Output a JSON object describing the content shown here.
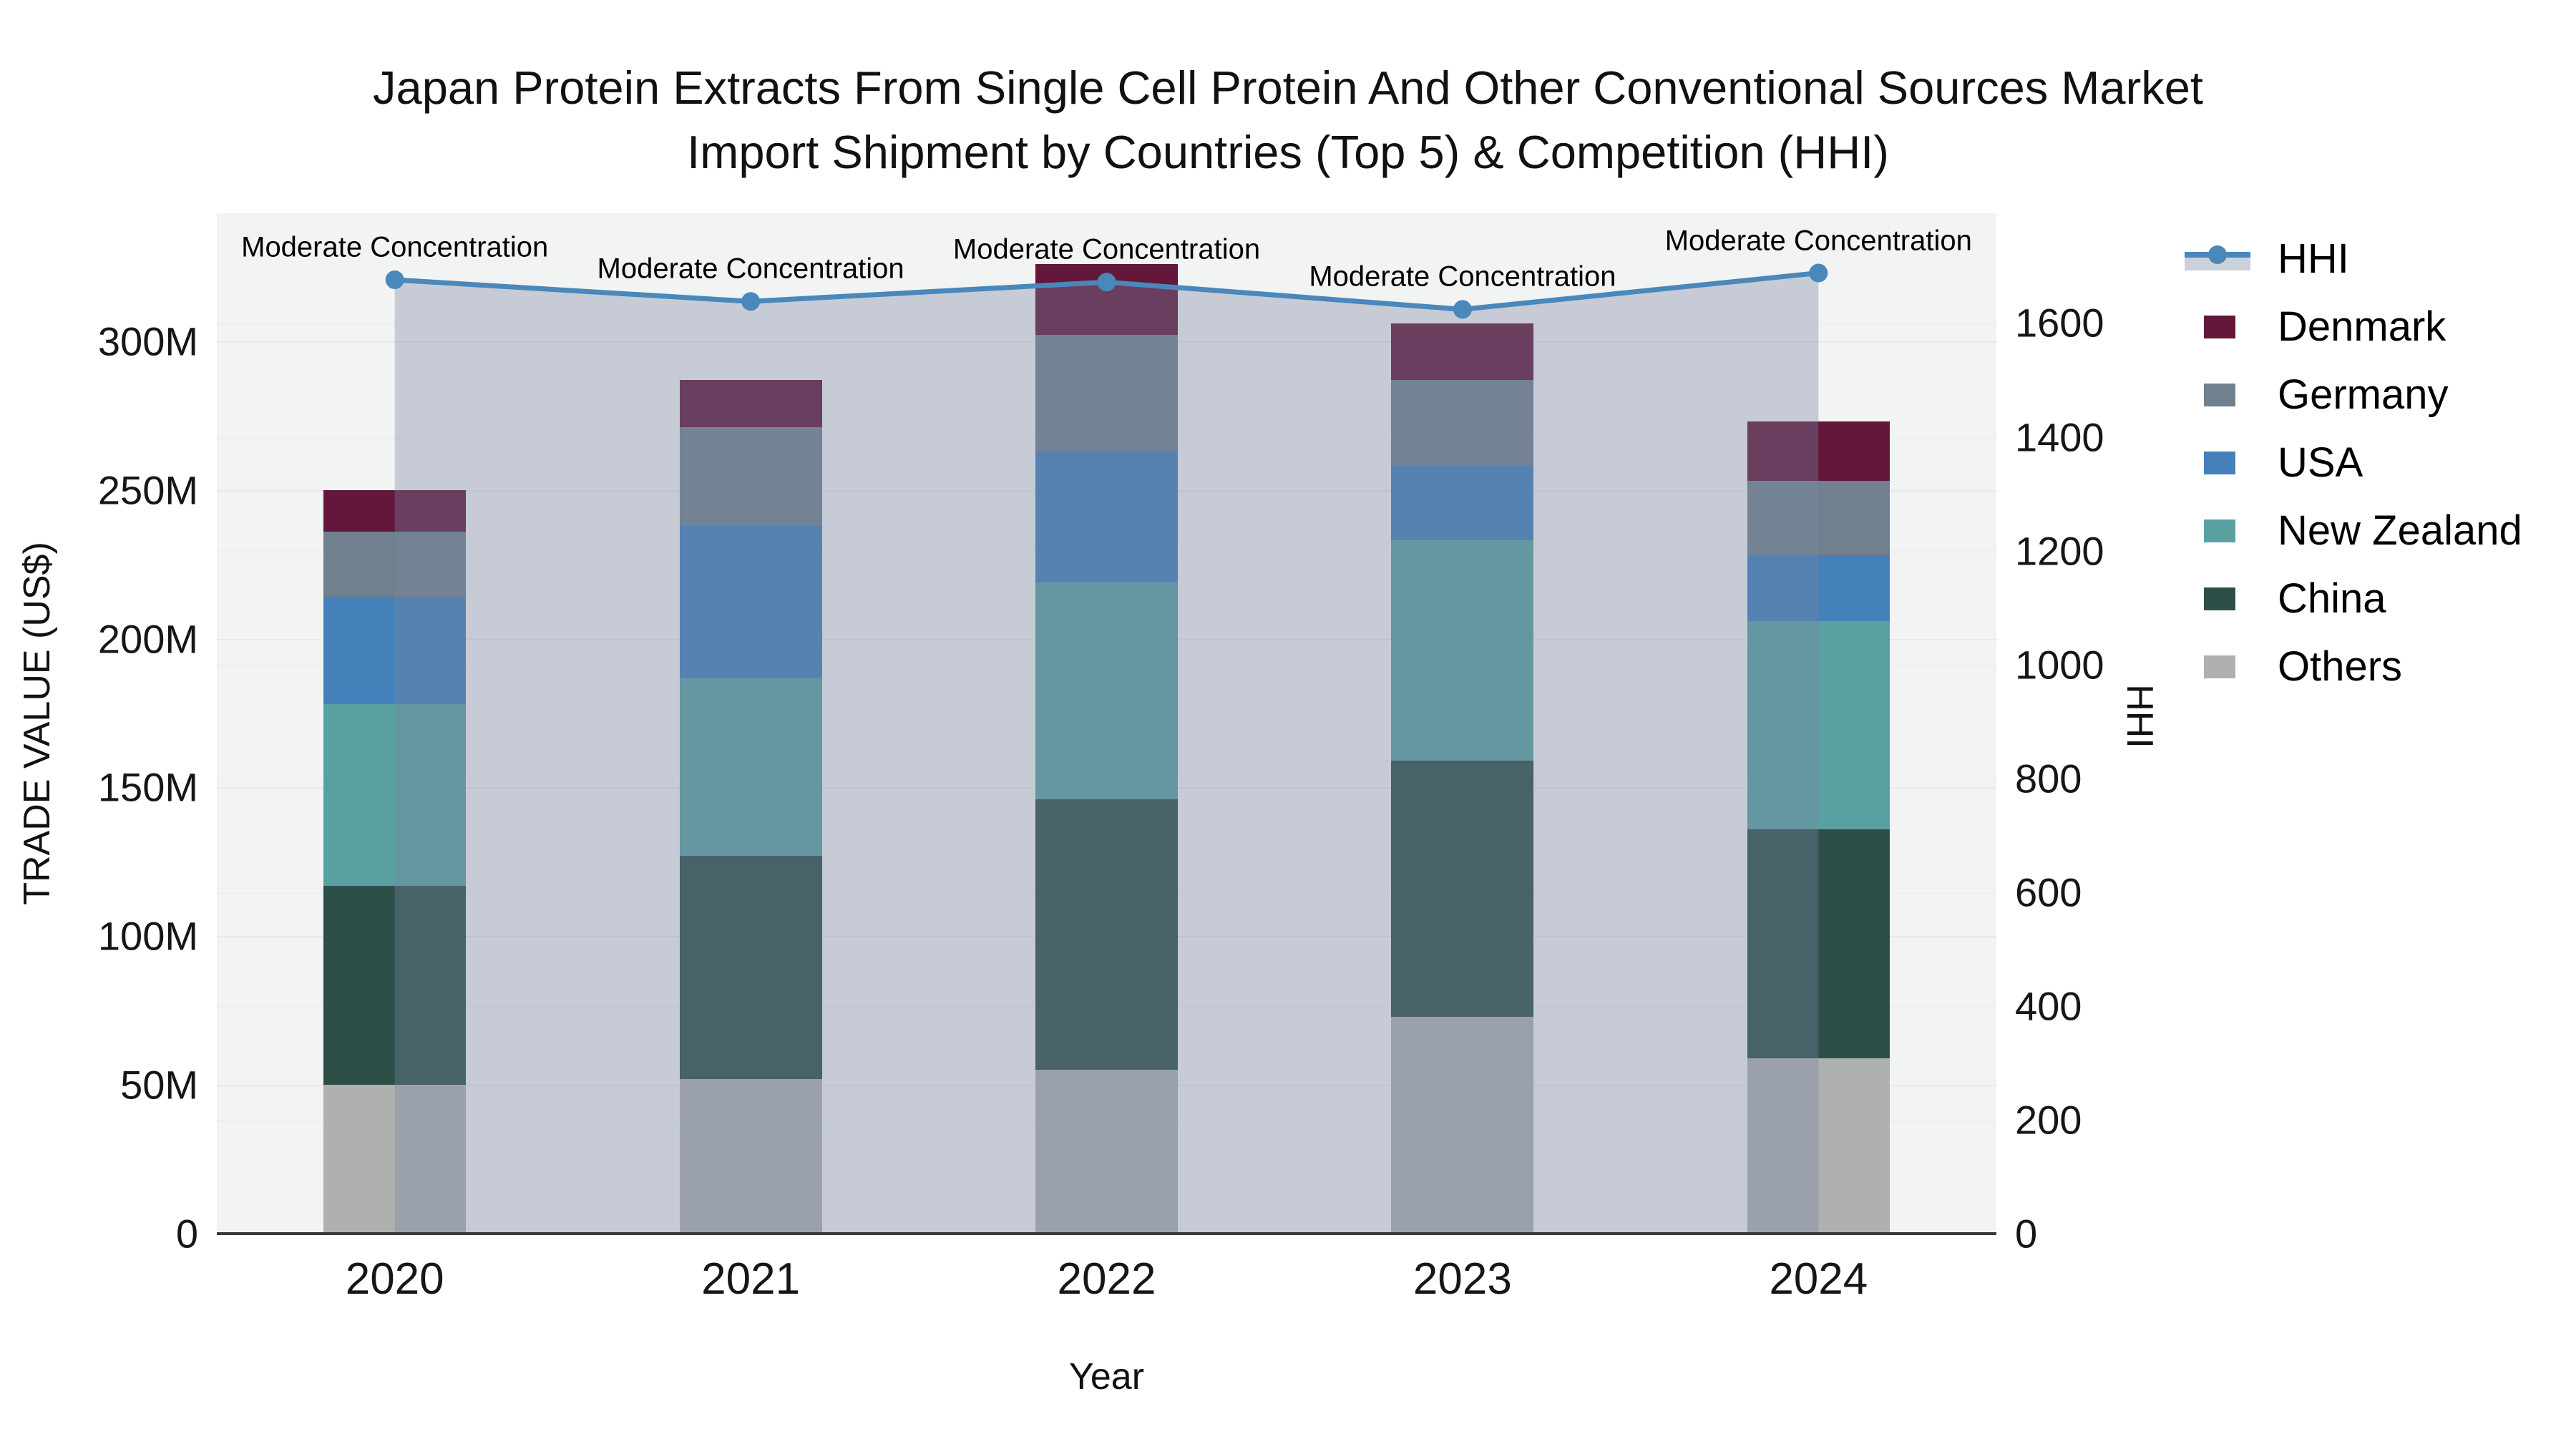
{
  "title": {
    "line1": "Japan Protein Extracts From Single Cell Protein And Other Conventional Sources Market",
    "line2": "Import Shipment by Countries (Top 5) & Competition (HHI)"
  },
  "axes": {
    "y_left": {
      "title": "TRADE VALUE (US$)",
      "ticks": [
        "0",
        "50M",
        "100M",
        "150M",
        "200M",
        "250M",
        "300M"
      ],
      "tick_values": [
        0,
        50,
        100,
        150,
        200,
        250,
        300
      ],
      "max": 343
    },
    "y_right": {
      "title": "HHI",
      "ticks": [
        "0",
        "200",
        "400",
        "600",
        "800",
        "1000",
        "1200",
        "1400",
        "1600"
      ],
      "tick_values": [
        0,
        200,
        400,
        600,
        800,
        1000,
        1200,
        1400,
        1600
      ],
      "max": 1793
    },
    "x": {
      "title": "Year",
      "categories": [
        "2020",
        "2021",
        "2022",
        "2023",
        "2024"
      ]
    }
  },
  "legend": [
    {
      "label": "HHI",
      "type": "line"
    },
    {
      "label": "Denmark",
      "type": "swatch",
      "color": "#63173b"
    },
    {
      "label": "Germany",
      "type": "swatch",
      "color": "#71808f"
    },
    {
      "label": "USA",
      "type": "swatch",
      "color": "#4481ba"
    },
    {
      "label": "New Zealand",
      "type": "swatch",
      "color": "#59a1a1"
    },
    {
      "label": "China",
      "type": "swatch",
      "color": "#2d4f48"
    },
    {
      "label": "Others",
      "type": "swatch",
      "color": "#afb1af"
    }
  ],
  "colors": {
    "plot_background": "#f2f3f3",
    "hhi_line": "#4a87ba",
    "hhi_fill": "rgba(118,133,161,0.36)",
    "axis_line": "#3a3a3a",
    "denmark": "#63173b",
    "germany": "#71808f",
    "usa": "#4481ba",
    "new_zealand": "#59a1a1",
    "china": "#2d4f48",
    "others": "#afb1af"
  },
  "chart_data": {
    "type": "bar",
    "subtype": "stacked-bars-with-line-overlay",
    "title": "Japan Protein Extracts From Single Cell Protein And Other Conventional Sources Market Import Shipment by Countries (Top 5) & Competition (HHI)",
    "xlabel": "Year",
    "ylabel_left": "TRADE VALUE (US$)",
    "ylabel_right": "HHI",
    "ylim_left_millions": [
      0,
      343
    ],
    "ylim_right": [
      0,
      1793
    ],
    "grid": true,
    "legend_position": "right",
    "categories": [
      "2020",
      "2021",
      "2022",
      "2023",
      "2024"
    ],
    "series": [
      {
        "name": "Others",
        "stack_order": 1,
        "color": "#afb1af",
        "values_millions": [
          50,
          52,
          55,
          73,
          59
        ]
      },
      {
        "name": "China",
        "stack_order": 2,
        "color": "#2d4f48",
        "values_millions": [
          67,
          75,
          91,
          86,
          77
        ]
      },
      {
        "name": "New Zealand",
        "stack_order": 3,
        "color": "#59a1a1",
        "values_millions": [
          61,
          60,
          73,
          74,
          70
        ]
      },
      {
        "name": "USA",
        "stack_order": 4,
        "color": "#4481ba",
        "values_millions": [
          36,
          51,
          44,
          25,
          22
        ]
      },
      {
        "name": "Germany",
        "stack_order": 5,
        "color": "#71808f",
        "values_millions": [
          22,
          33,
          39,
          29,
          25
        ]
      },
      {
        "name": "Denmark",
        "stack_order": 6,
        "color": "#63173b",
        "values_millions": [
          14,
          16,
          24,
          19,
          20
        ]
      }
    ],
    "bar_totals_millions": [
      250,
      287,
      326,
      306,
      273
    ],
    "line_series": {
      "name": "HHI",
      "axis": "right",
      "values": [
        1676,
        1638,
        1672,
        1624,
        1688
      ],
      "color": "#4a87ba",
      "area_fill": "rgba(118,133,161,0.36)",
      "markers": true
    },
    "annotations": [
      {
        "x": "2020",
        "text": "Moderate Concentration"
      },
      {
        "x": "2021",
        "text": "Moderate Concentration"
      },
      {
        "x": "2022",
        "text": "Moderate Concentration"
      },
      {
        "x": "2023",
        "text": "Moderate Concentration"
      },
      {
        "x": "2024",
        "text": "Moderate Concentration"
      }
    ]
  }
}
